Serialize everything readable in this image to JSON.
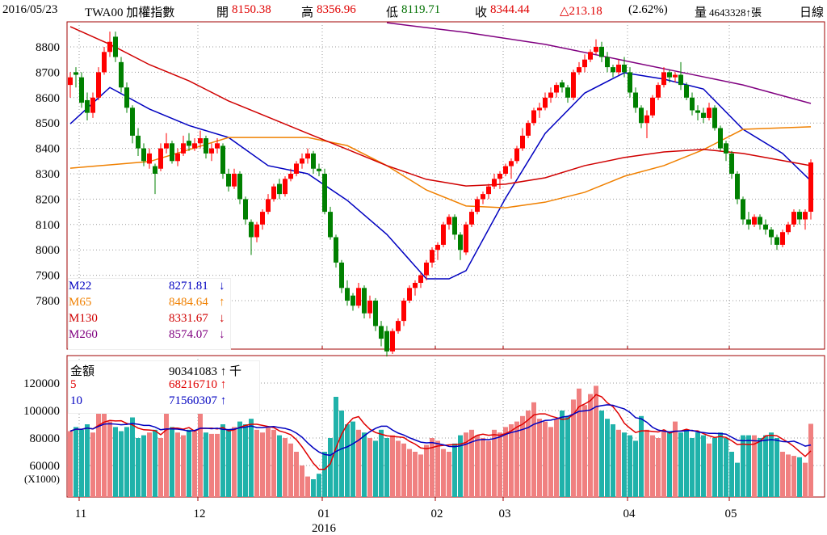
{
  "header": {
    "date": "2016/05/23",
    "symbol": "TWA00 加權指數",
    "open_label": "開",
    "open": "8150.38",
    "high_label": "高",
    "high": "8356.96",
    "low_label": "低",
    "low": "8119.71",
    "close_label": "收",
    "close": "8344.44",
    "change": "△213.18",
    "change_pct": "(2.62%)",
    "volume_label": "量",
    "volume": "4643328↑張",
    "period": "日線"
  },
  "ma_legend": [
    {
      "name": "M22",
      "value": "8271.81",
      "arrow": "↓",
      "color": "#0000c0"
    },
    {
      "name": "M65",
      "value": "8484.64",
      "arrow": "↑",
      "color": "#f08000"
    },
    {
      "name": "M130",
      "value": "8331.67",
      "arrow": "↓",
      "color": "#d00000"
    },
    {
      "name": "M260",
      "value": "8574.07",
      "arrow": "↓",
      "color": "#800080"
    }
  ],
  "vol_legend": [
    {
      "name": "金額",
      "value": "90341083 ↑ 千",
      "color": "#000000"
    },
    {
      "name": "5",
      "value": "68216710 ↑",
      "color": "#e00000"
    },
    {
      "name": "10",
      "value": "71560307 ↑",
      "color": "#0000c0"
    }
  ],
  "chart_data": {
    "type": "candlestick",
    "title": "TWA00 加權指數 日線",
    "price_ticks": [
      7800,
      7900,
      8000,
      8100,
      8200,
      8300,
      8400,
      8500,
      8600,
      8700,
      8800
    ],
    "price_range": [
      7500,
      8900
    ],
    "volume_ticks": [
      60000,
      80000,
      100000,
      120000
    ],
    "volume_unit_label": "(X1000)",
    "volume_range": [
      38800,
      140000
    ],
    "months": [
      {
        "label": "11",
        "index": 2
      },
      {
        "label": "12",
        "index": 23
      },
      {
        "label": "01",
        "index": 45,
        "year": "2016"
      },
      {
        "label": "02",
        "index": 65
      },
      {
        "label": "03",
        "index": 77
      },
      {
        "label": "04",
        "index": 99
      },
      {
        "label": "05",
        "index": 117
      }
    ],
    "candles_ohlc": [
      [
        8650,
        8700,
        8600,
        8680
      ],
      [
        8700,
        8720,
        8640,
        8690
      ],
      [
        8680,
        8700,
        8560,
        8580
      ],
      [
        8590,
        8620,
        8510,
        8540
      ],
      [
        8540,
        8620,
        8520,
        8600
      ],
      [
        8600,
        8720,
        8590,
        8700
      ],
      [
        8700,
        8800,
        8690,
        8780
      ],
      [
        8780,
        8860,
        8760,
        8820
      ],
      [
        8840,
        8860,
        8740,
        8760
      ],
      [
        8740,
        8760,
        8620,
        8640
      ],
      [
        8640,
        8660,
        8540,
        8560
      ],
      [
        8560,
        8570,
        8420,
        8450
      ],
      [
        8450,
        8480,
        8370,
        8400
      ],
      [
        8400,
        8420,
        8330,
        8350
      ],
      [
        8340,
        8400,
        8320,
        8380
      ],
      [
        8330,
        8340,
        8220,
        8300
      ],
      [
        8320,
        8420,
        8310,
        8400
      ],
      [
        8400,
        8460,
        8380,
        8420
      ],
      [
        8420,
        8430,
        8340,
        8350
      ],
      [
        8350,
        8400,
        8330,
        8380
      ],
      [
        8380,
        8450,
        8370,
        8420
      ],
      [
        8430,
        8460,
        8390,
        8410
      ],
      [
        8400,
        8440,
        8390,
        8420
      ],
      [
        8420,
        8470,
        8400,
        8440
      ],
      [
        8440,
        8450,
        8360,
        8380
      ],
      [
        8380,
        8420,
        8350,
        8400
      ],
      [
        8400,
        8440,
        8380,
        8420
      ],
      [
        8410,
        8420,
        8280,
        8300
      ],
      [
        8300,
        8320,
        8230,
        8250
      ],
      [
        8250,
        8320,
        8240,
        8300
      ],
      [
        8300,
        8310,
        8180,
        8200
      ],
      [
        8200,
        8210,
        8100,
        8120
      ],
      [
        8110,
        8120,
        7980,
        8050
      ],
      [
        8050,
        8110,
        8030,
        8100
      ],
      [
        8100,
        8160,
        8080,
        8150
      ],
      [
        8150,
        8220,
        8140,
        8200
      ],
      [
        8200,
        8260,
        8190,
        8250
      ],
      [
        8260,
        8280,
        8200,
        8220
      ],
      [
        8220,
        8290,
        8210,
        8280
      ],
      [
        8280,
        8320,
        8270,
        8300
      ],
      [
        8300,
        8350,
        8290,
        8340
      ],
      [
        8340,
        8380,
        8320,
        8360
      ],
      [
        8360,
        8400,
        8340,
        8380
      ],
      [
        8380,
        8390,
        8300,
        8320
      ],
      [
        8320,
        8340,
        8290,
        8310
      ],
      [
        8300,
        8320,
        8140,
        8150
      ],
      [
        8150,
        8170,
        8040,
        8050
      ],
      [
        8050,
        8060,
        7930,
        7950
      ],
      [
        7950,
        7960,
        7830,
        7850
      ],
      [
        7850,
        7880,
        7780,
        7800
      ],
      [
        7820,
        7830,
        7760,
        7780
      ],
      [
        7780,
        7870,
        7770,
        7850
      ],
      [
        7850,
        7860,
        7730,
        7750
      ],
      [
        7750,
        7820,
        7730,
        7800
      ],
      [
        7800,
        7810,
        7680,
        7700
      ],
      [
        7700,
        7720,
        7620,
        7650
      ],
      [
        7680,
        7700,
        7580,
        7600
      ],
      [
        7600,
        7690,
        7590,
        7680
      ],
      [
        7680,
        7730,
        7670,
        7720
      ],
      [
        7720,
        7810,
        7700,
        7800
      ],
      [
        7800,
        7860,
        7790,
        7850
      ],
      [
        7850,
        7880,
        7820,
        7870
      ],
      [
        7870,
        7910,
        7850,
        7900
      ],
      [
        7900,
        7960,
        7880,
        7950
      ],
      [
        7950,
        8010,
        7930,
        8000
      ],
      [
        8000,
        8030,
        7960,
        8020
      ],
      [
        8020,
        8110,
        8010,
        8100
      ],
      [
        8100,
        8140,
        8080,
        8130
      ],
      [
        8130,
        8140,
        8040,
        8060
      ],
      [
        8060,
        8070,
        7960,
        8000
      ],
      [
        7990,
        8110,
        7980,
        8100
      ],
      [
        8100,
        8160,
        8090,
        8150
      ],
      [
        8150,
        8210,
        8140,
        8200
      ],
      [
        8200,
        8230,
        8180,
        8220
      ],
      [
        8220,
        8260,
        8200,
        8250
      ],
      [
        8250,
        8300,
        8240,
        8280
      ],
      [
        8280,
        8310,
        8240,
        8300
      ],
      [
        8300,
        8340,
        8290,
        8330
      ],
      [
        8330,
        8360,
        8280,
        8350
      ],
      [
        8350,
        8410,
        8340,
        8400
      ],
      [
        8400,
        8480,
        8390,
        8450
      ],
      [
        8450,
        8510,
        8440,
        8500
      ],
      [
        8500,
        8560,
        8490,
        8550
      ],
      [
        8550,
        8580,
        8520,
        8560
      ],
      [
        8560,
        8620,
        8550,
        8600
      ],
      [
        8600,
        8640,
        8580,
        8620
      ],
      [
        8620,
        8660,
        8600,
        8650
      ],
      [
        8660,
        8670,
        8620,
        8640
      ],
      [
        8640,
        8650,
        8580,
        8600
      ],
      [
        8600,
        8710,
        8590,
        8700
      ],
      [
        8700,
        8740,
        8690,
        8720
      ],
      [
        8720,
        8770,
        8700,
        8750
      ],
      [
        8750,
        8790,
        8740,
        8780
      ],
      [
        8780,
        8830,
        8770,
        8800
      ],
      [
        8800,
        8820,
        8740,
        8760
      ],
      [
        8760,
        8780,
        8700,
        8720
      ],
      [
        8720,
        8730,
        8680,
        8700
      ],
      [
        8700,
        8750,
        8690,
        8730
      ],
      [
        8730,
        8760,
        8680,
        8700
      ],
      [
        8700,
        8720,
        8600,
        8620
      ],
      [
        8620,
        8640,
        8540,
        8560
      ],
      [
        8560,
        8570,
        8480,
        8500
      ],
      [
        8500,
        8550,
        8440,
        8530
      ],
      [
        8530,
        8610,
        8520,
        8600
      ],
      [
        8600,
        8660,
        8590,
        8650
      ],
      [
        8650,
        8720,
        8640,
        8700
      ],
      [
        8700,
        8710,
        8660,
        8680
      ],
      [
        8680,
        8700,
        8660,
        8690
      ],
      [
        8690,
        8740,
        8630,
        8650
      ],
      [
        8650,
        8660,
        8590,
        8600
      ],
      [
        8600,
        8620,
        8530,
        8550
      ],
      [
        8550,
        8570,
        8510,
        8540
      ],
      [
        8540,
        8560,
        8500,
        8520
      ],
      [
        8520,
        8580,
        8510,
        8560
      ],
      [
        8560,
        8570,
        8470,
        8480
      ],
      [
        8480,
        8490,
        8390,
        8400
      ],
      [
        8420,
        8430,
        8350,
        8380
      ],
      [
        8380,
        8390,
        8280,
        8300
      ],
      [
        8300,
        8310,
        8180,
        8200
      ],
      [
        8200,
        8210,
        8100,
        8120
      ],
      [
        8120,
        8150,
        8080,
        8100
      ],
      [
        8100,
        8140,
        8090,
        8130
      ],
      [
        8130,
        8140,
        8080,
        8100
      ],
      [
        8100,
        8120,
        8060,
        8080
      ],
      [
        8080,
        8090,
        8020,
        8050
      ],
      [
        8050,
        8060,
        8000,
        8020
      ],
      [
        8020,
        8080,
        8010,
        8070
      ],
      [
        8070,
        8110,
        8060,
        8100
      ],
      [
        8100,
        8160,
        8090,
        8150
      ],
      [
        8150,
        8160,
        8100,
        8120
      ],
      [
        8120,
        8160,
        8080,
        8150
      ],
      [
        8150.38,
        8356.96,
        8119.71,
        8344.44
      ]
    ],
    "volume": [
      85000,
      88000,
      86000,
      90000,
      84000,
      98000,
      100000,
      92000,
      88000,
      85000,
      88000,
      95000,
      80000,
      82000,
      84000,
      86000,
      80000,
      98000,
      88000,
      84000,
      82000,
      86000,
      85000,
      98000,
      84000,
      83000,
      83000,
      90000,
      86000,
      88000,
      92000,
      90000,
      94000,
      86000,
      84000,
      88000,
      86000,
      82000,
      80000,
      76000,
      70000,
      60000,
      52000,
      50000,
      54000,
      70000,
      80000,
      110000,
      100000,
      90000,
      92000,
      86000,
      84000,
      80000,
      78000,
      86000,
      80000,
      82000,
      78000,
      76000,
      72000,
      70000,
      68000,
      75000,
      80000,
      78000,
      72000,
      70000,
      76000,
      82000,
      84000,
      86000,
      82000,
      80000,
      78000,
      86000,
      84000,
      88000,
      90000,
      92000,
      96000,
      100000,
      106000,
      94000,
      92000,
      88000,
      94000,
      100000,
      96000,
      108000,
      116000,
      104000,
      112000,
      118000,
      100000,
      94000,
      90000,
      86000,
      84000,
      82000,
      78000,
      96000,
      86000,
      82000,
      80000,
      86000,
      84000,
      92000,
      84000,
      86000,
      80000,
      84000,
      82000,
      76000,
      80000,
      84000,
      80000,
      70000,
      62000,
      82000,
      82000,
      82000,
      80000,
      82000,
      84000,
      80000,
      70000,
      68000,
      67000,
      66000,
      62000,
      90341
    ],
    "moving_averages": [
      {
        "name": "M22",
        "color": "#0000c0",
        "points": [
          [
            0,
            8497
          ],
          [
            7,
            8640
          ],
          [
            14,
            8555
          ],
          [
            21,
            8490
          ],
          [
            28,
            8443
          ],
          [
            35,
            8332
          ],
          [
            42,
            8300
          ],
          [
            49,
            8195
          ],
          [
            56,
            8061
          ],
          [
            63,
            7886
          ],
          [
            67,
            7886
          ],
          [
            70,
            7918
          ],
          [
            77,
            8204
          ],
          [
            84,
            8459
          ],
          [
            91,
            8618
          ],
          [
            98,
            8698
          ],
          [
            105,
            8673
          ],
          [
            112,
            8634
          ],
          [
            119,
            8475
          ],
          [
            126,
            8380
          ],
          [
            131,
            8272
          ]
        ]
      },
      {
        "name": "M65",
        "color": "#f08000",
        "points": [
          [
            0,
            8322
          ],
          [
            14,
            8348
          ],
          [
            21,
            8395
          ],
          [
            28,
            8443
          ],
          [
            35,
            8443
          ],
          [
            42,
            8443
          ],
          [
            49,
            8411
          ],
          [
            56,
            8332
          ],
          [
            63,
            8236
          ],
          [
            70,
            8173
          ],
          [
            77,
            8166
          ],
          [
            84,
            8188
          ],
          [
            91,
            8227
          ],
          [
            98,
            8290
          ],
          [
            105,
            8332
          ],
          [
            112,
            8395
          ],
          [
            119,
            8475
          ],
          [
            131,
            8485
          ]
        ]
      },
      {
        "name": "M130",
        "color": "#d00000",
        "points": [
          [
            0,
            8880
          ],
          [
            7,
            8810
          ],
          [
            14,
            8730
          ],
          [
            21,
            8666
          ],
          [
            28,
            8587
          ],
          [
            35,
            8523
          ],
          [
            42,
            8459
          ],
          [
            49,
            8396
          ],
          [
            56,
            8332
          ],
          [
            63,
            8278
          ],
          [
            70,
            8252
          ],
          [
            77,
            8259
          ],
          [
            84,
            8284
          ],
          [
            91,
            8332
          ],
          [
            98,
            8364
          ],
          [
            105,
            8386
          ],
          [
            112,
            8396
          ],
          [
            119,
            8380
          ],
          [
            131,
            8332
          ]
        ]
      },
      {
        "name": "M260",
        "color": "#800080",
        "points": [
          [
            56,
            8895
          ],
          [
            70,
            8857
          ],
          [
            84,
            8810
          ],
          [
            98,
            8746
          ],
          [
            112,
            8682
          ],
          [
            119,
            8650
          ],
          [
            131,
            8577
          ]
        ]
      }
    ],
    "volume_ma": [
      {
        "name": "5",
        "period": 5,
        "color": "#e00000"
      },
      {
        "name": "10",
        "period": 10,
        "color": "#0000c0"
      }
    ]
  }
}
